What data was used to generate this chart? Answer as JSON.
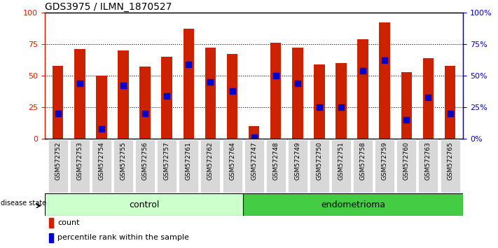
{
  "title": "GDS3975 / ILMN_1870527",
  "samples": [
    "GSM572752",
    "GSM572753",
    "GSM572754",
    "GSM572755",
    "GSM572756",
    "GSM572757",
    "GSM572761",
    "GSM572762",
    "GSM572764",
    "GSM572747",
    "GSM572748",
    "GSM572749",
    "GSM572750",
    "GSM572751",
    "GSM572758",
    "GSM572759",
    "GSM572760",
    "GSM572763",
    "GSM572765"
  ],
  "count_values": [
    58,
    71,
    50,
    70,
    57,
    65,
    87,
    72,
    67,
    10,
    76,
    72,
    59,
    60,
    79,
    92,
    53,
    64,
    58
  ],
  "percentile_values": [
    20,
    44,
    8,
    42,
    20,
    34,
    59,
    45,
    38,
    1,
    50,
    44,
    25,
    25,
    54,
    62,
    15,
    33,
    20
  ],
  "n_control": 9,
  "n_endometrioma": 10,
  "bar_color": "#cc2200",
  "dot_color": "#0000cc",
  "control_bg": "#ccffcc",
  "endometrioma_bg": "#44cc44",
  "axis_left_color": "#cc2200",
  "axis_right_color": "#0000cc",
  "ylim": [
    0,
    100
  ],
  "yticks": [
    0,
    25,
    50,
    75,
    100
  ],
  "ytick_labels_left": [
    "0",
    "25",
    "50",
    "75",
    "100"
  ],
  "ytick_labels_right": [
    "0%",
    "25%",
    "50%",
    "75%",
    "100%"
  ],
  "grid_lines": [
    25,
    50,
    75
  ],
  "bar_width": 0.5,
  "dot_size": 40,
  "dot_marker": "s"
}
